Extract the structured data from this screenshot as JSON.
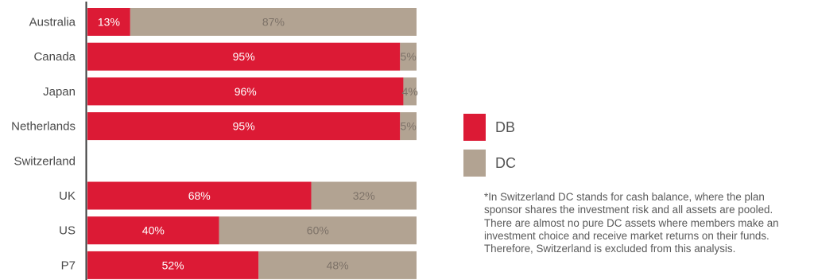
{
  "colors": {
    "db": "#dc1a35",
    "dc": "#b2a392",
    "axis": "#3a3a3a"
  },
  "chart_data": {
    "type": "bar",
    "orientation": "horizontal",
    "stacked": true,
    "categories": [
      "Australia",
      "Canada",
      "Japan",
      "Netherlands",
      "Switzerland",
      "UK",
      "US",
      "P7"
    ],
    "series": [
      {
        "name": "DB",
        "values": [
          13,
          95,
          96,
          95,
          null,
          68,
          40,
          52
        ],
        "labels": [
          "13%",
          "95%",
          "96%",
          "95%",
          "",
          "68%",
          "40%",
          "52%"
        ]
      },
      {
        "name": "DC",
        "values": [
          87,
          5,
          4,
          5,
          null,
          32,
          60,
          48
        ],
        "labels": [
          "87%",
          "5%",
          "4%",
          "5%",
          "",
          "32%",
          "60%",
          "48%"
        ]
      }
    ],
    "xlim": [
      0,
      100
    ],
    "grid": false,
    "legend_position": "right"
  },
  "legend": [
    {
      "label": "DB",
      "color": "#dc1a35"
    },
    {
      "label": "DC",
      "color": "#b2a392"
    }
  ],
  "footnote": "*In Switzerland DC stands for cash balance, where the plan sponsor shares the investment risk and all assets are pooled. There are almost no pure DC assets where members make an investment choice and receive market returns on their funds. Therefore, Switzerland is excluded from this analysis."
}
